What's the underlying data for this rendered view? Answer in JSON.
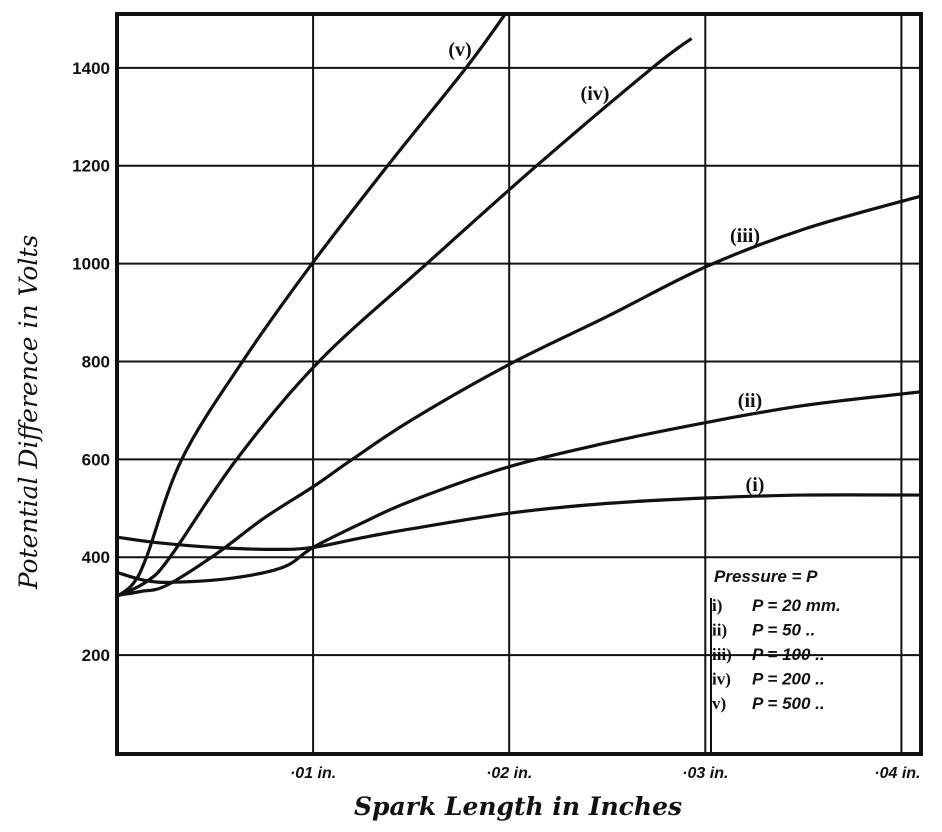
{
  "chart_data": {
    "type": "line",
    "title": "",
    "xlabel": "Spark Length in Inches",
    "ylabel": "Potential Difference in Volts",
    "xlim": [
      0,
      0.041
    ],
    "ylim": [
      0,
      1510
    ],
    "grid": true,
    "x_ticks": [
      0.01,
      0.02,
      0.03,
      0.04
    ],
    "x_tick_labels": [
      "·01 in.",
      "·02 in.",
      "·03 in.",
      "·04 in."
    ],
    "y_ticks": [
      200,
      400,
      600,
      800,
      1000,
      1200,
      1400
    ],
    "y_tick_labels": [
      "200",
      "400",
      "600",
      "800",
      "1000",
      "1200",
      "1400"
    ],
    "line_color": "#111111",
    "legend": {
      "placement": "bottom-right",
      "title": "Pressure = P",
      "entries": [
        {
          "key": "i)",
          "text": "P = 20 mm."
        },
        {
          "key": "ii)",
          "text": "P = 50  .."
        },
        {
          "key": "iii)",
          "text": "P = 100 .."
        },
        {
          "key": "iv)",
          "text": "P = 200 .."
        },
        {
          "key": "v)",
          "text": "P = 500 .."
        }
      ]
    },
    "series": [
      {
        "name": "(i)",
        "points": [
          [
            0,
            441
          ],
          [
            0.002,
            430
          ],
          [
            0.005,
            420
          ],
          [
            0.008,
            416
          ],
          [
            0.01,
            420
          ],
          [
            0.0125,
            440
          ],
          [
            0.015,
            458
          ],
          [
            0.02,
            490
          ],
          [
            0.025,
            510
          ],
          [
            0.03,
            521
          ],
          [
            0.035,
            527
          ],
          [
            0.041,
            527
          ]
        ]
      },
      {
        "name": "(ii)",
        "points": [
          [
            0,
            369
          ],
          [
            0.0015,
            352
          ],
          [
            0.003,
            349
          ],
          [
            0.006,
            358
          ],
          [
            0.0085,
            380
          ],
          [
            0.01,
            420
          ],
          [
            0.0125,
            470
          ],
          [
            0.015,
            515
          ],
          [
            0.02,
            585
          ],
          [
            0.025,
            634
          ],
          [
            0.03,
            675
          ],
          [
            0.035,
            710
          ],
          [
            0.041,
            738
          ]
        ]
      },
      {
        "name": "(iii)",
        "points": [
          [
            0,
            322
          ],
          [
            0.0012,
            330
          ],
          [
            0.0025,
            342
          ],
          [
            0.005,
            405
          ],
          [
            0.0075,
            480
          ],
          [
            0.01,
            544
          ],
          [
            0.012,
            600
          ],
          [
            0.015,
            680
          ],
          [
            0.02,
            794
          ],
          [
            0.025,
            892
          ],
          [
            0.03,
            993
          ],
          [
            0.035,
            1070
          ],
          [
            0.041,
            1138
          ]
        ]
      },
      {
        "name": "(iv)",
        "points": [
          [
            0,
            320
          ],
          [
            0.0015,
            350
          ],
          [
            0.0027,
            400
          ],
          [
            0.0061,
            600
          ],
          [
            0.0103,
            800
          ],
          [
            0.0158,
            1000
          ],
          [
            0.0214,
            1200
          ],
          [
            0.0273,
            1400
          ],
          [
            0.0293,
            1460
          ]
        ]
      },
      {
        "name": "(v)",
        "points": [
          [
            0,
            320
          ],
          [
            0.0008,
            345
          ],
          [
            0.0015,
            400
          ],
          [
            0.0033,
            600
          ],
          [
            0.0064,
            800
          ],
          [
            0.00995,
            1000
          ],
          [
            0.0138,
            1200
          ],
          [
            0.0178,
            1400
          ],
          [
            0.0198,
            1510
          ]
        ]
      }
    ]
  }
}
